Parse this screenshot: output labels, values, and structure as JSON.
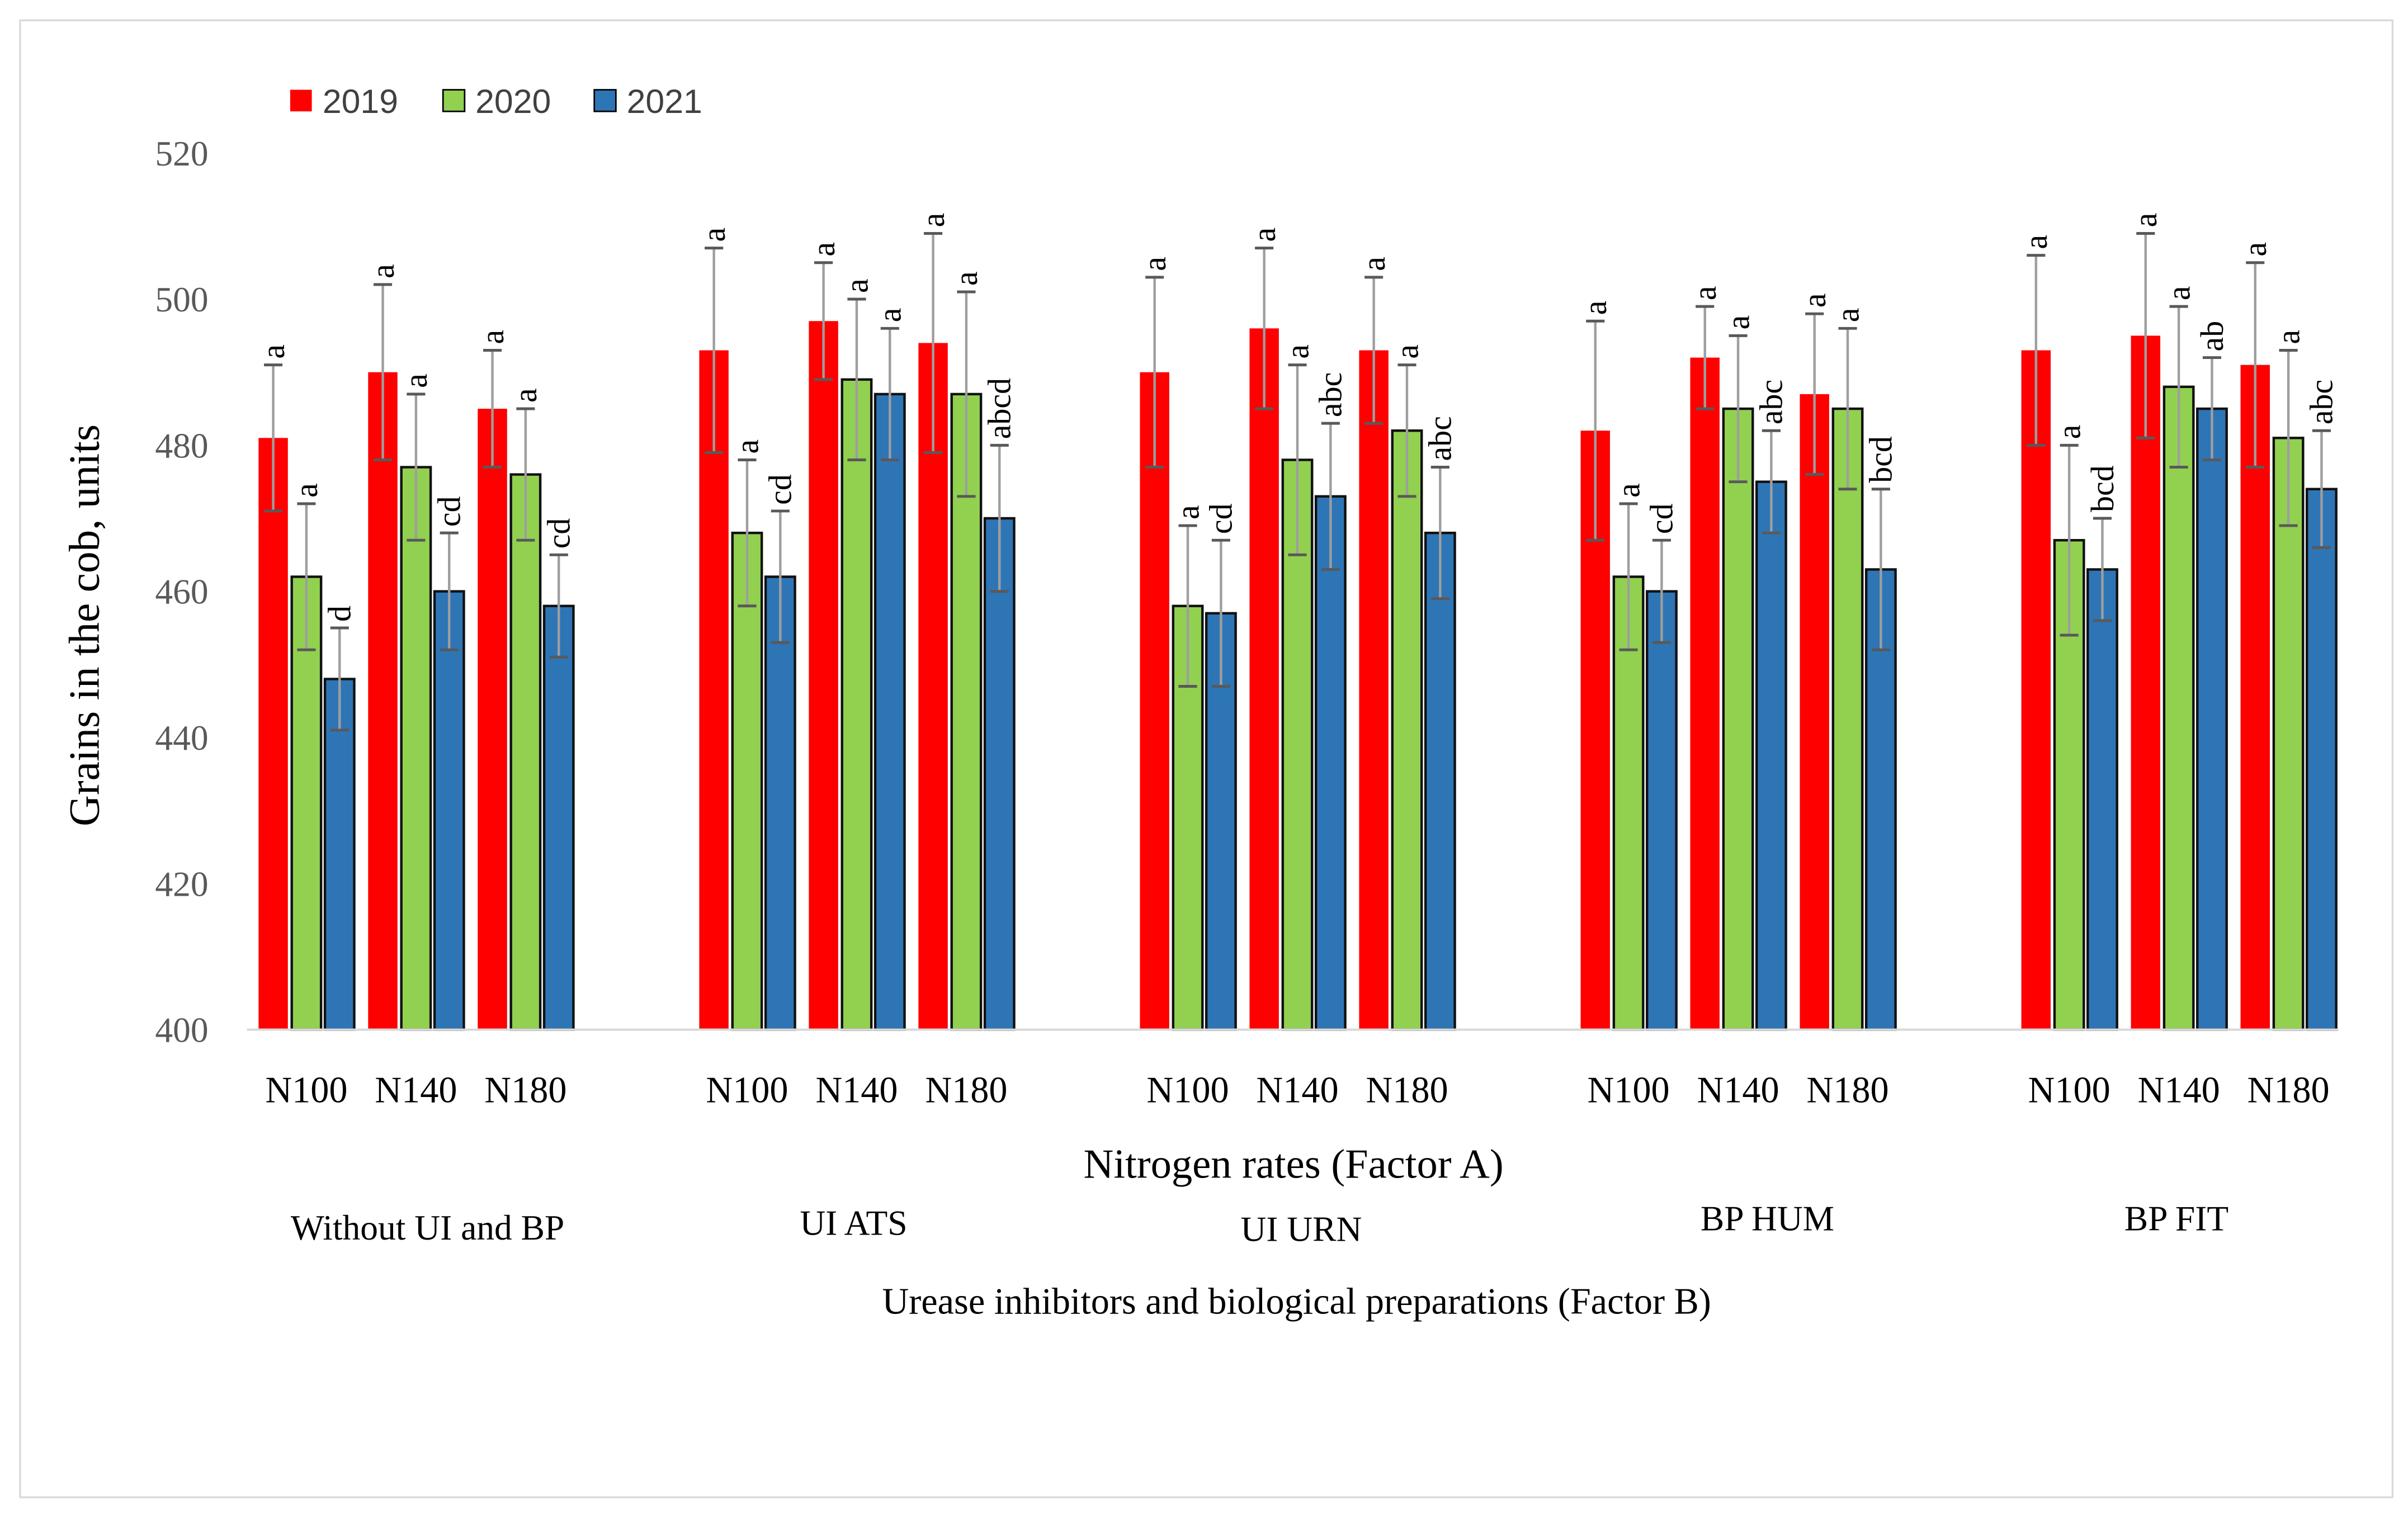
{
  "chart_data": {
    "type": "bar",
    "ylabel": "Grains in the cob, units",
    "xlabel": "Nitrogen rates (Factor A)",
    "factor_b_label": "Urease inhibitors and biological preparations (Factor B)",
    "ylim": [
      400,
      520
    ],
    "yticks": [
      400,
      420,
      440,
      460,
      480,
      500,
      520
    ],
    "grid": false,
    "legend_position": "top-left",
    "series": [
      {
        "name": "2019",
        "color": "#FF0000"
      },
      {
        "name": "2020",
        "color": "#92D050"
      },
      {
        "name": "2021",
        "color": "#2E75B6"
      }
    ],
    "nitrogen_rates": [
      "N100",
      "N140",
      "N180"
    ],
    "groups": [
      {
        "name": "Without UI and BP",
        "values": [
          [
            481,
            462,
            448
          ],
          [
            490,
            477,
            460
          ],
          [
            485,
            476,
            458
          ]
        ],
        "errors": [
          [
            10,
            10,
            7
          ],
          [
            12,
            10,
            8
          ],
          [
            8,
            9,
            7
          ]
        ],
        "letters": [
          [
            "a",
            "a",
            "d"
          ],
          [
            "a",
            "a",
            "cd"
          ],
          [
            "a",
            "a",
            "cd"
          ]
        ]
      },
      {
        "name": "UI ATS",
        "values": [
          [
            493,
            468,
            462
          ],
          [
            497,
            489,
            487
          ],
          [
            494,
            487,
            470
          ]
        ],
        "errors": [
          [
            14,
            10,
            9
          ],
          [
            8,
            11,
            9
          ],
          [
            15,
            14,
            10
          ]
        ],
        "letters": [
          [
            "a",
            "a",
            "cd"
          ],
          [
            "a",
            "a",
            "a"
          ],
          [
            "a",
            "a",
            "abcd"
          ]
        ]
      },
      {
        "name": "UI URN",
        "values": [
          [
            490,
            458,
            457
          ],
          [
            496,
            478,
            473
          ],
          [
            493,
            482,
            468
          ]
        ],
        "errors": [
          [
            13,
            11,
            10
          ],
          [
            11,
            13,
            10
          ],
          [
            10,
            9,
            9
          ]
        ],
        "letters": [
          [
            "a",
            "a",
            "cd"
          ],
          [
            "a",
            "a",
            "abc"
          ],
          [
            "a",
            "a",
            "abc"
          ]
        ]
      },
      {
        "name": "BP HUM",
        "values": [
          [
            482,
            462,
            460
          ],
          [
            492,
            485,
            475
          ],
          [
            487,
            485,
            463
          ]
        ],
        "errors": [
          [
            15,
            10,
            7
          ],
          [
            7,
            10,
            7
          ],
          [
            11,
            11,
            11
          ]
        ],
        "letters": [
          [
            "a",
            "a",
            "cd"
          ],
          [
            "a",
            "a",
            "abc"
          ],
          [
            "a",
            "a",
            "bcd"
          ]
        ]
      },
      {
        "name": "BP FIT",
        "values": [
          [
            493,
            467,
            463
          ],
          [
            495,
            488,
            485
          ],
          [
            491,
            481,
            474
          ]
        ],
        "errors": [
          [
            13,
            13,
            7
          ],
          [
            14,
            11,
            7
          ],
          [
            14,
            12,
            8
          ]
        ],
        "letters": [
          [
            "a",
            "a",
            "bcd"
          ],
          [
            "a",
            "a",
            "ab"
          ],
          [
            "a",
            "a",
            "abc"
          ]
        ]
      }
    ]
  }
}
